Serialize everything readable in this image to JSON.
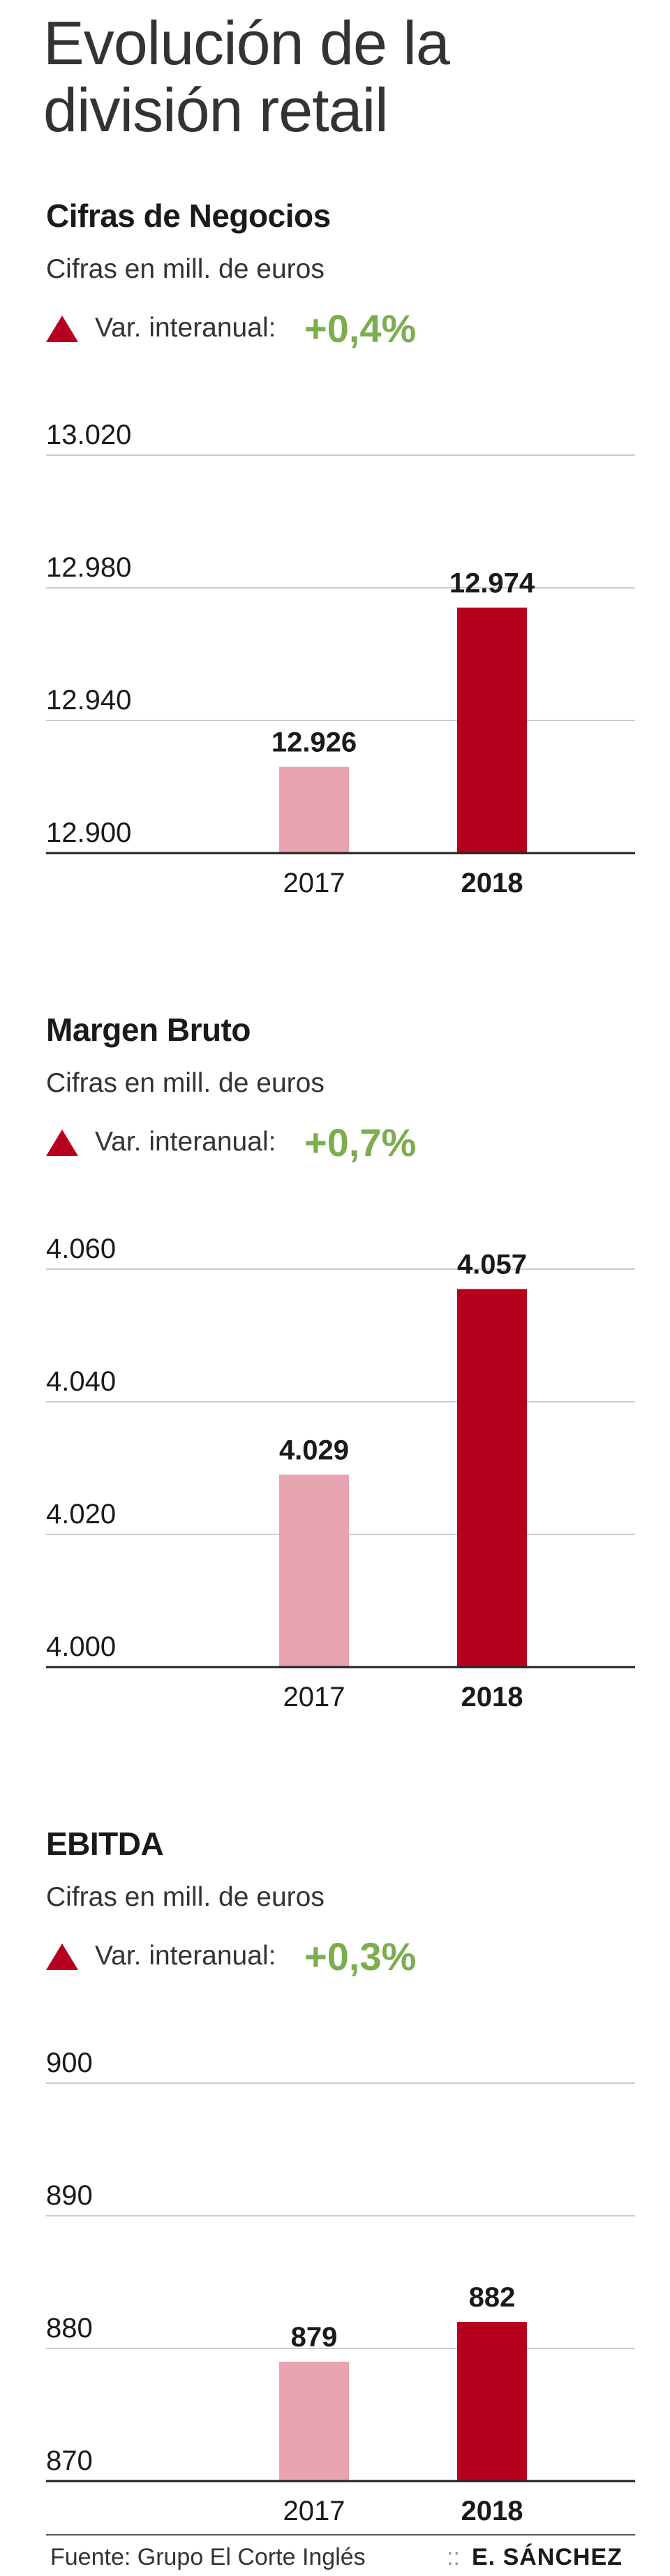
{
  "page_title": "Evolución de la división retail",
  "colors": {
    "bar_prev": "#e8a4b0",
    "bar_curr": "#b5001e",
    "increase": "#7cad4e",
    "triangle": "#b5001e",
    "grid": "#cccccc",
    "axis": "#222222"
  },
  "chart_data": [
    {
      "type": "bar",
      "title": "Cifras de Negocios",
      "subtitle": "Cifras en mill. de euros",
      "var_label": "Var. interanual:",
      "var_value": "+0,4%",
      "categories": [
        "2017",
        "2018"
      ],
      "values": [
        12926,
        12974
      ],
      "value_labels": [
        "12.926",
        "12.974"
      ],
      "yticks": [
        12900,
        12940,
        12980,
        13020
      ],
      "ytick_labels": [
        "12.900",
        "12.940",
        "12.980",
        "13.020"
      ],
      "ylim": [
        12900,
        13020
      ]
    },
    {
      "type": "bar",
      "title": "Margen Bruto",
      "subtitle": "Cifras en mill. de euros",
      "var_label": "Var. interanual:",
      "var_value": "+0,7%",
      "categories": [
        "2017",
        "2018"
      ],
      "values": [
        4029,
        4057
      ],
      "value_labels": [
        "4.029",
        "4.057"
      ],
      "yticks": [
        4000,
        4020,
        4040,
        4060
      ],
      "ytick_labels": [
        "4.000",
        "4.020",
        "4.040",
        "4.060"
      ],
      "ylim": [
        4000,
        4060
      ]
    },
    {
      "type": "bar",
      "title": "EBITDA",
      "subtitle": "Cifras en mill. de euros",
      "var_label": "Var. interanual:",
      "var_value": "+0,3%",
      "categories": [
        "2017",
        "2018"
      ],
      "values": [
        879,
        882
      ],
      "value_labels": [
        "879",
        "882"
      ],
      "yticks": [
        870,
        880,
        890,
        900
      ],
      "ytick_labels": [
        "870",
        "880",
        "890",
        "900"
      ],
      "ylim": [
        870,
        900
      ]
    }
  ],
  "footer": {
    "source": "Fuente: Grupo El Corte Inglés",
    "separator": "::",
    "author": "E. SÁNCHEZ"
  }
}
